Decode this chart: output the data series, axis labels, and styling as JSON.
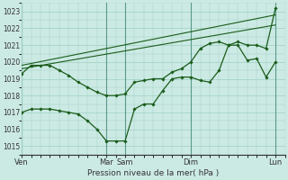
{
  "bg_color": "#cceae4",
  "line_color": "#1a5c1a",
  "grid_color": "#9ecfc4",
  "vline_color": "#5a9a8a",
  "xlabel": "Pression niveau de la mer( hPa )",
  "ylim": [
    1014.5,
    1023.5
  ],
  "yticks": [
    1015,
    1016,
    1017,
    1018,
    1019,
    1020,
    1021,
    1022,
    1023
  ],
  "xlim": [
    0,
    28
  ],
  "xtick_positions": [
    0,
    9,
    11,
    18,
    27
  ],
  "xtick_labels": [
    "Ven",
    "Mar",
    "Sam",
    "Dim",
    "Lun"
  ],
  "vline_positions": [
    0,
    9,
    11,
    18,
    27
  ],
  "line1_x": [
    0,
    1,
    2,
    3,
    4,
    5,
    6,
    7,
    8,
    9,
    10,
    11,
    12,
    13,
    14,
    15,
    16,
    17,
    18,
    19,
    20,
    21,
    22,
    23,
    24,
    25,
    26,
    27
  ],
  "line1_y": [
    1017.0,
    1017.2,
    1017.2,
    1017.2,
    1017.1,
    1017.0,
    1016.9,
    1016.5,
    1016.0,
    1015.3,
    1015.3,
    1015.3,
    1017.2,
    1017.5,
    1017.5,
    1018.3,
    1019.0,
    1019.1,
    1019.1,
    1018.9,
    1018.8,
    1019.5,
    1021.0,
    1021.2,
    1021.0,
    1021.0,
    1020.8,
    1023.2
  ],
  "line2_x": [
    0,
    1,
    2,
    3,
    4,
    5,
    6,
    7,
    8,
    9,
    10,
    11,
    12,
    13,
    14,
    15,
    16,
    17,
    18,
    19,
    20,
    21,
    22,
    23,
    24,
    25,
    26,
    27
  ],
  "line2_y": [
    1019.3,
    1019.8,
    1019.8,
    1019.8,
    1019.5,
    1019.2,
    1018.8,
    1018.5,
    1018.2,
    1018.0,
    1018.0,
    1018.1,
    1018.8,
    1018.9,
    1019.0,
    1019.0,
    1019.4,
    1019.6,
    1020.0,
    1020.8,
    1021.1,
    1021.2,
    1021.0,
    1021.0,
    1020.1,
    1020.2,
    1019.1,
    1020.0
  ],
  "line3_x": [
    0,
    27
  ],
  "line3_y": [
    1019.6,
    1022.2
  ],
  "line4_x": [
    0,
    27
  ],
  "line4_y": [
    1019.8,
    1022.8
  ]
}
